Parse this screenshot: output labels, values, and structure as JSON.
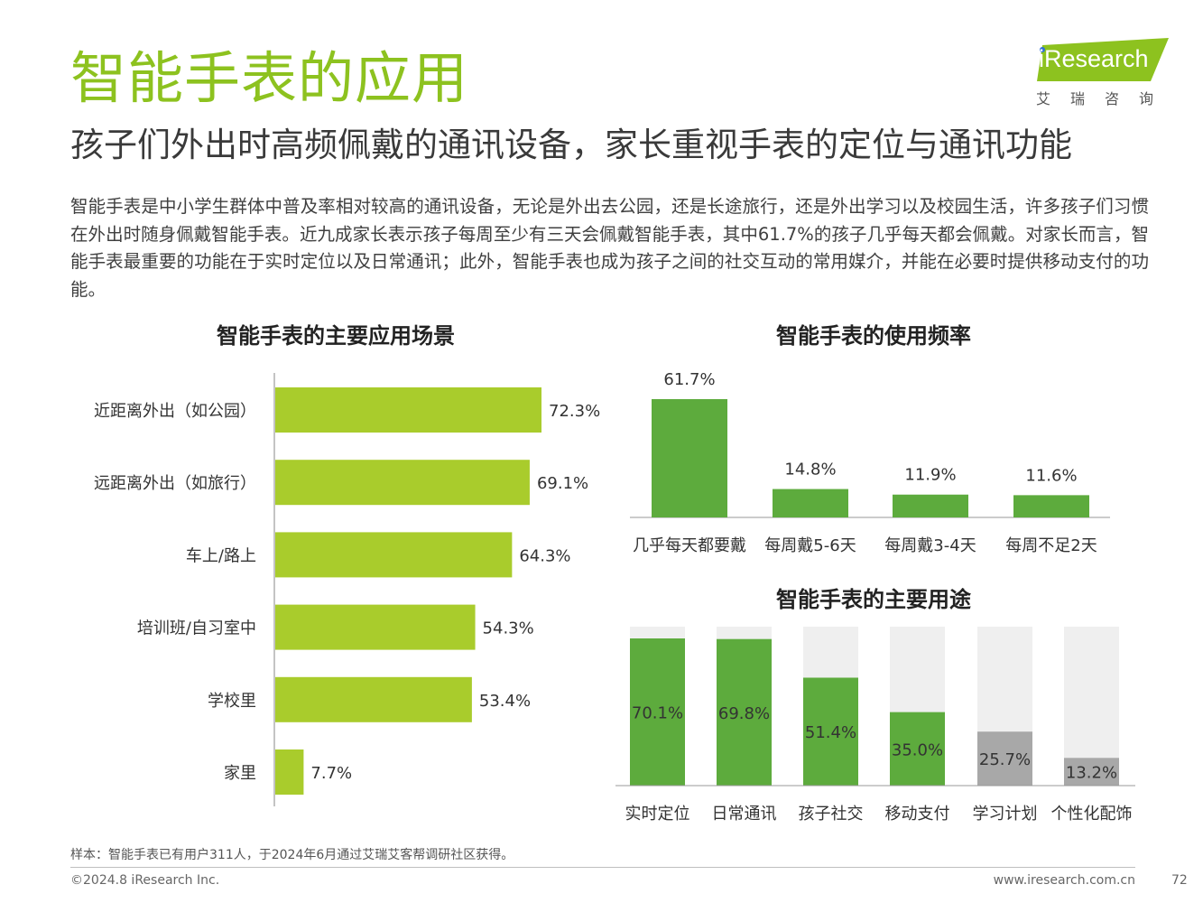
{
  "header": {
    "title": "智能手表的应用",
    "subtitle": "孩子们外出时高频佩戴的通讯设备，家长重视手表的定位与通讯功能"
  },
  "logo": {
    "brand": "iResearch",
    "cn": "艾瑞咨询"
  },
  "intro": "智能手表是中小学生群体中普及率相对较高的通讯设备，无论是外出去公园，还是长途旅行，还是外出学习以及校园生活，许多孩子们习惯在外出时随身佩戴智能手表。近九成家长表示孩子每周至少有三天会佩戴智能手表，其中61.7%的孩子几乎每天都会佩戴。对家长而言，智能手表最重要的功能在于实时定位以及日常通讯；此外，智能手表也成为孩子之间的社交互动的常用媒介，并能在必要时提供移动支付的功能。",
  "colors": {
    "brand_green": "#8dc21f",
    "bar_lime": "#a9cc2c",
    "bar_green": "#5dab3d",
    "bar_gray": "#a8a8a8",
    "track_gray": "#efefef"
  },
  "chart_data": [
    {
      "type": "bar",
      "orientation": "horizontal",
      "title": "智能手表的主要应用场景",
      "categories": [
        "近距离外出（如公园）",
        "远距离外出（如旅行）",
        "车上/路上",
        "培训班/自习室中",
        "学校里",
        "家里"
      ],
      "values": [
        72.3,
        69.1,
        64.3,
        54.3,
        53.4,
        7.7
      ],
      "labels": [
        "72.3%",
        "69.1%",
        "64.3%",
        "54.3%",
        "53.4%",
        "7.7%"
      ],
      "unit": "%",
      "xlim": [
        0,
        100
      ]
    },
    {
      "type": "bar",
      "title": "智能手表的使用频率",
      "categories": [
        "几乎每天都要戴",
        "每周戴5-6天",
        "每周戴3-4天",
        "每周不足2天"
      ],
      "values": [
        61.7,
        14.8,
        11.9,
        11.6
      ],
      "labels": [
        "61.7%",
        "14.8%",
        "11.9%",
        "11.6%"
      ],
      "unit": "%",
      "ylim": [
        0,
        100
      ]
    },
    {
      "type": "bar",
      "title": "智能手表的主要用途",
      "categories": [
        "实时定位",
        "日常通讯",
        "孩子社交",
        "移动支付",
        "学习计划",
        "个性化配饰"
      ],
      "values": [
        70.1,
        69.8,
        51.4,
        35.0,
        25.7,
        13.2
      ],
      "labels": [
        "70.1%",
        "69.8%",
        "51.4%",
        "35.0%",
        "25.7%",
        "13.2%"
      ],
      "bar_colors": [
        "green",
        "green",
        "green",
        "green",
        "gray",
        "gray"
      ],
      "unit": "%",
      "ylim": [
        0,
        100
      ]
    }
  ],
  "footer": {
    "note": "样本：智能手表已有用户311人，于2024年6月通过艾瑞艾客帮调研社区获得。",
    "copyright": "©2024.8 iResearch Inc.",
    "website": "www.iresearch.com.cn",
    "page": "72"
  }
}
